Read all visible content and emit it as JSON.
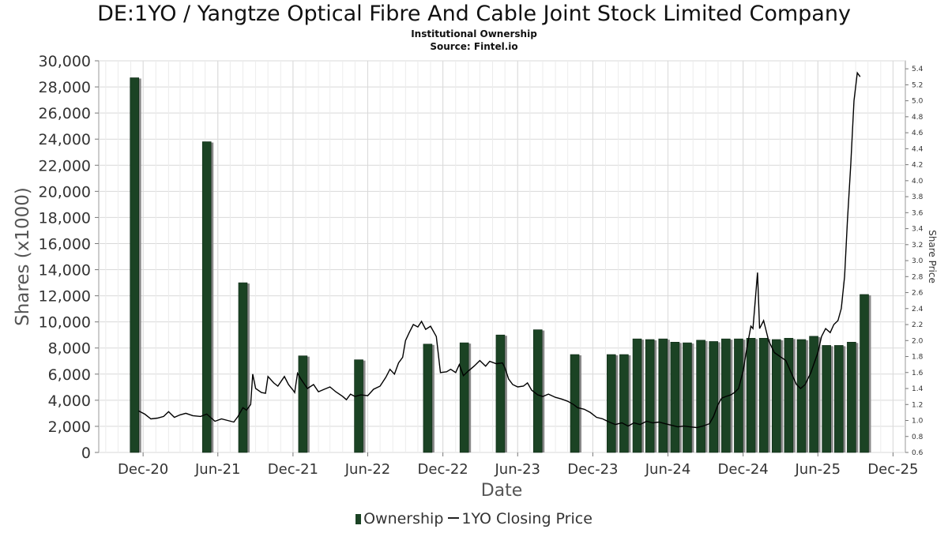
{
  "header": {
    "title": "DE:1YO / Yangtze Optical Fibre And Cable Joint Stock Limited Company",
    "subtitle": "Institutional Ownership",
    "source": "Source: Fintel.io"
  },
  "legend": {
    "ownership_label": "Ownership",
    "price_label": "1YO Closing Price"
  },
  "colors": {
    "bar": "#1b4324",
    "bar_shadow": "#8a8a8a",
    "line": "#000000",
    "grid": "#d9d9d9"
  },
  "chart_data": {
    "type": "bar",
    "xlabel": "Date",
    "ylabel": "Shares (x1000)",
    "y2label": "Share Price",
    "x_ticks": [
      "Dec-20",
      "Jun-21",
      "Dec-21",
      "Jun-22",
      "Dec-22",
      "Jun-23",
      "Dec-23",
      "Jun-24",
      "Dec-24",
      "Jun-25",
      "Dec-25"
    ],
    "xlim": [
      "2020-08-15",
      "2025-12-31"
    ],
    "ylim": [
      0,
      30000
    ],
    "y_ticks": [
      0,
      2000,
      4000,
      6000,
      8000,
      10000,
      12000,
      14000,
      16000,
      18000,
      20000,
      22000,
      24000,
      26000,
      28000,
      30000
    ],
    "y2lim": [
      0.6,
      5.5
    ],
    "y2_ticks": [
      0.6,
      0.8,
      1.0,
      1.2,
      1.4,
      1.6,
      1.8,
      2.0,
      2.2,
      2.4,
      2.6,
      2.8,
      3.0,
      3.2,
      3.4,
      3.6,
      3.8,
      4.0,
      4.2,
      4.4,
      4.6,
      4.8,
      5.0,
      5.2,
      5.4
    ],
    "grid": true,
    "legend_position": "bottom-center",
    "series": [
      {
        "name": "Ownership",
        "type": "bar",
        "points": [
          {
            "date": "2020-11-10",
            "value": 28700
          },
          {
            "date": "2021-05-05",
            "value": 23800
          },
          {
            "date": "2021-08-01",
            "value": 13000
          },
          {
            "date": "2021-12-25",
            "value": 7400
          },
          {
            "date": "2022-05-10",
            "value": 7100
          },
          {
            "date": "2022-10-25",
            "value": 8300
          },
          {
            "date": "2023-01-22",
            "value": 8400
          },
          {
            "date": "2023-04-20",
            "value": 9000
          },
          {
            "date": "2023-07-20",
            "value": 9400
          },
          {
            "date": "2023-10-18",
            "value": 7500
          },
          {
            "date": "2024-01-15",
            "value": 7500
          },
          {
            "date": "2024-02-15",
            "value": 7500
          },
          {
            "date": "2024-03-18",
            "value": 8700
          },
          {
            "date": "2024-04-18",
            "value": 8650
          },
          {
            "date": "2024-05-20",
            "value": 8700
          },
          {
            "date": "2024-06-18",
            "value": 8450
          },
          {
            "date": "2024-07-18",
            "value": 8400
          },
          {
            "date": "2024-08-20",
            "value": 8600
          },
          {
            "date": "2024-09-20",
            "value": 8500
          },
          {
            "date": "2024-10-20",
            "value": 8700
          },
          {
            "date": "2024-11-20",
            "value": 8700
          },
          {
            "date": "2024-12-20",
            "value": 8750
          },
          {
            "date": "2025-01-20",
            "value": 8750
          },
          {
            "date": "2025-02-20",
            "value": 8650
          },
          {
            "date": "2025-03-22",
            "value": 8750
          },
          {
            "date": "2025-04-22",
            "value": 8650
          },
          {
            "date": "2025-05-22",
            "value": 8900
          },
          {
            "date": "2025-06-22",
            "value": 8200
          },
          {
            "date": "2025-07-22",
            "value": 8200
          },
          {
            "date": "2025-08-22",
            "value": 8450
          },
          {
            "date": "2025-09-22",
            "value": 12100
          }
        ]
      },
      {
        "name": "1YO Closing Price",
        "type": "line",
        "points": [
          [
            "2020-11-20",
            1.12
          ],
          [
            "2020-12-05",
            1.08
          ],
          [
            "2020-12-20",
            1.02
          ],
          [
            "2021-01-05",
            1.03
          ],
          [
            "2021-01-20",
            1.05
          ],
          [
            "2021-02-01",
            1.11
          ],
          [
            "2021-02-15",
            1.04
          ],
          [
            "2021-03-01",
            1.07
          ],
          [
            "2021-03-15",
            1.09
          ],
          [
            "2021-04-01",
            1.06
          ],
          [
            "2021-04-20",
            1.05
          ],
          [
            "2021-05-05",
            1.08
          ],
          [
            "2021-05-25",
            0.99
          ],
          [
            "2021-06-10",
            1.02
          ],
          [
            "2021-06-25",
            1.0
          ],
          [
            "2021-07-10",
            0.98
          ],
          [
            "2021-07-20",
            1.05
          ],
          [
            "2021-08-01",
            1.16
          ],
          [
            "2021-08-10",
            1.13
          ],
          [
            "2021-08-20",
            1.2
          ],
          [
            "2021-08-25",
            1.58
          ],
          [
            "2021-09-01",
            1.4
          ],
          [
            "2021-09-15",
            1.35
          ],
          [
            "2021-09-25",
            1.34
          ],
          [
            "2021-10-01",
            1.55
          ],
          [
            "2021-10-15",
            1.47
          ],
          [
            "2021-10-25",
            1.43
          ],
          [
            "2021-11-10",
            1.55
          ],
          [
            "2021-11-20",
            1.45
          ],
          [
            "2021-12-01",
            1.38
          ],
          [
            "2021-12-05",
            1.35
          ],
          [
            "2021-12-12",
            1.59
          ],
          [
            "2021-12-20",
            1.52
          ],
          [
            "2022-01-05",
            1.4
          ],
          [
            "2022-01-20",
            1.45
          ],
          [
            "2022-02-01",
            1.36
          ],
          [
            "2022-02-15",
            1.39
          ],
          [
            "2022-03-01",
            1.42
          ],
          [
            "2022-03-15",
            1.36
          ],
          [
            "2022-04-01",
            1.3
          ],
          [
            "2022-04-10",
            1.26
          ],
          [
            "2022-04-20",
            1.33
          ],
          [
            "2022-05-01",
            1.3
          ],
          [
            "2022-05-15",
            1.32
          ],
          [
            "2022-06-01",
            1.31
          ],
          [
            "2022-06-15",
            1.39
          ],
          [
            "2022-07-01",
            1.43
          ],
          [
            "2022-07-15",
            1.54
          ],
          [
            "2022-07-25",
            1.64
          ],
          [
            "2022-08-05",
            1.58
          ],
          [
            "2022-08-15",
            1.72
          ],
          [
            "2022-08-25",
            1.79
          ],
          [
            "2022-09-01",
            2.0
          ],
          [
            "2022-09-10",
            2.1
          ],
          [
            "2022-09-20",
            2.2
          ],
          [
            "2022-10-01",
            2.17
          ],
          [
            "2022-10-10",
            2.24
          ],
          [
            "2022-10-20",
            2.14
          ],
          [
            "2022-11-01",
            2.18
          ],
          [
            "2022-11-15",
            2.05
          ],
          [
            "2022-11-25",
            1.6
          ],
          [
            "2022-12-10",
            1.61
          ],
          [
            "2022-12-20",
            1.64
          ],
          [
            "2023-01-01",
            1.6
          ],
          [
            "2023-01-10",
            1.7
          ],
          [
            "2023-01-20",
            1.56
          ],
          [
            "2023-02-01",
            1.62
          ],
          [
            "2023-02-15",
            1.68
          ],
          [
            "2023-03-01",
            1.75
          ],
          [
            "2023-03-15",
            1.68
          ],
          [
            "2023-03-25",
            1.74
          ],
          [
            "2023-04-10",
            1.71
          ],
          [
            "2023-04-25",
            1.72
          ],
          [
            "2023-05-01",
            1.66
          ],
          [
            "2023-05-10",
            1.52
          ],
          [
            "2023-05-20",
            1.45
          ],
          [
            "2023-06-01",
            1.42
          ],
          [
            "2023-06-15",
            1.43
          ],
          [
            "2023-06-25",
            1.47
          ],
          [
            "2023-07-05",
            1.38
          ],
          [
            "2023-07-20",
            1.32
          ],
          [
            "2023-08-01",
            1.3
          ],
          [
            "2023-08-15",
            1.33
          ],
          [
            "2023-09-01",
            1.29
          ],
          [
            "2023-09-15",
            1.27
          ],
          [
            "2023-10-01",
            1.24
          ],
          [
            "2023-10-15",
            1.2
          ],
          [
            "2023-10-25",
            1.16
          ],
          [
            "2023-11-10",
            1.14
          ],
          [
            "2023-11-25",
            1.1
          ],
          [
            "2023-12-10",
            1.04
          ],
          [
            "2023-12-25",
            1.02
          ],
          [
            "2024-01-10",
            0.98
          ],
          [
            "2024-01-25",
            0.95
          ],
          [
            "2024-02-10",
            0.97
          ],
          [
            "2024-02-25",
            0.93
          ],
          [
            "2024-03-10",
            0.97
          ],
          [
            "2024-03-25",
            0.95
          ],
          [
            "2024-04-10",
            0.99
          ],
          [
            "2024-04-25",
            0.97
          ],
          [
            "2024-05-10",
            0.98
          ],
          [
            "2024-05-25",
            0.96
          ],
          [
            "2024-06-10",
            0.94
          ],
          [
            "2024-06-25",
            0.92
          ],
          [
            "2024-07-10",
            0.93
          ],
          [
            "2024-07-25",
            0.92
          ],
          [
            "2024-08-10",
            0.91
          ],
          [
            "2024-08-25",
            0.93
          ],
          [
            "2024-09-10",
            0.96
          ],
          [
            "2024-09-20",
            1.05
          ],
          [
            "2024-10-01",
            1.2
          ],
          [
            "2024-10-10",
            1.28
          ],
          [
            "2024-10-20",
            1.3
          ],
          [
            "2024-11-01",
            1.32
          ],
          [
            "2024-11-10",
            1.35
          ],
          [
            "2024-11-20",
            1.4
          ],
          [
            "2024-12-01",
            1.62
          ],
          [
            "2024-12-10",
            1.9
          ],
          [
            "2024-12-20",
            2.18
          ],
          [
            "2024-12-25",
            2.15
          ],
          [
            "2025-01-05",
            2.85
          ],
          [
            "2025-01-10",
            2.15
          ],
          [
            "2025-01-20",
            2.25
          ],
          [
            "2025-02-01",
            2.0
          ],
          [
            "2025-02-15",
            1.85
          ],
          [
            "2025-03-01",
            1.8
          ],
          [
            "2025-03-15",
            1.75
          ],
          [
            "2025-04-01",
            1.55
          ],
          [
            "2025-04-10",
            1.45
          ],
          [
            "2025-04-20",
            1.4
          ],
          [
            "2025-05-01",
            1.45
          ],
          [
            "2025-05-15",
            1.6
          ],
          [
            "2025-06-01",
            1.85
          ],
          [
            "2025-06-10",
            2.05
          ],
          [
            "2025-06-20",
            2.15
          ],
          [
            "2025-07-01",
            2.1
          ],
          [
            "2025-07-10",
            2.2
          ],
          [
            "2025-07-20",
            2.25
          ],
          [
            "2025-07-28",
            2.4
          ],
          [
            "2025-08-05",
            2.8
          ],
          [
            "2025-08-12",
            3.5
          ],
          [
            "2025-08-20",
            4.2
          ],
          [
            "2025-08-28",
            5.0
          ],
          [
            "2025-09-05",
            5.35
          ],
          [
            "2025-09-12",
            5.3
          ]
        ]
      }
    ]
  }
}
